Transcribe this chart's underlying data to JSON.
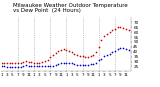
{
  "title_line1": "Milwaukee Weather Outdoor Temperature",
  "title_line2": "vs Dew Point  (24 Hours)",
  "temp_color": "#cc0000",
  "dew_color": "#0000cc",
  "background_color": "#ffffff",
  "grid_color": "#999999",
  "ylim": [
    20,
    75
  ],
  "xlim": [
    0,
    48
  ],
  "temp_x": [
    0,
    1,
    2,
    3,
    4,
    5,
    6,
    7,
    8,
    9,
    10,
    11,
    12,
    13,
    14,
    15,
    16,
    17,
    18,
    19,
    20,
    21,
    22,
    23,
    24,
    25,
    26,
    27,
    28,
    29,
    30,
    31,
    32,
    33,
    34,
    35,
    36,
    37,
    38,
    39,
    40,
    41,
    42,
    43,
    44,
    45,
    46,
    47
  ],
  "temp_y": [
    29,
    29,
    29,
    29,
    29,
    29,
    29,
    29,
    30,
    31,
    30,
    30,
    29,
    29,
    29,
    30,
    31,
    32,
    35,
    37,
    39,
    41,
    42,
    43,
    42,
    41,
    40,
    38,
    37,
    36,
    36,
    35,
    35,
    36,
    37,
    40,
    45,
    52,
    56,
    58,
    60,
    62,
    63,
    65,
    65,
    64,
    63,
    62
  ],
  "dew_x": [
    0,
    1,
    2,
    3,
    4,
    5,
    6,
    7,
    8,
    9,
    10,
    11,
    12,
    13,
    14,
    15,
    16,
    17,
    18,
    19,
    20,
    21,
    22,
    23,
    24,
    25,
    26,
    27,
    28,
    29,
    30,
    31,
    32,
    33,
    34,
    35,
    36,
    37,
    38,
    39,
    40,
    41,
    42,
    43,
    44,
    45,
    46,
    47
  ],
  "dew_y": [
    25,
    25,
    24,
    24,
    24,
    24,
    24,
    24,
    25,
    26,
    25,
    25,
    25,
    25,
    25,
    25,
    25,
    25,
    25,
    25,
    26,
    27,
    28,
    29,
    29,
    28,
    28,
    27,
    26,
    26,
    26,
    26,
    26,
    27,
    27,
    29,
    32,
    33,
    36,
    37,
    38,
    40,
    41,
    43,
    44,
    44,
    43,
    42
  ],
  "vgrid_positions": [
    6,
    12,
    18,
    24,
    30,
    36,
    42
  ],
  "ytick_positions": [
    25,
    30,
    35,
    40,
    45,
    50,
    55,
    60,
    65,
    70
  ],
  "xtick_positions": [
    0,
    2,
    4,
    6,
    8,
    10,
    12,
    14,
    16,
    18,
    20,
    22,
    24,
    26,
    28,
    30,
    32,
    34,
    36,
    38,
    40,
    42,
    44,
    46
  ],
  "xtick_labels": [
    "1",
    "3",
    "5",
    "7",
    "9",
    "11",
    "1",
    "3",
    "5",
    "7",
    "9",
    "11",
    "1",
    "3",
    "5",
    "7",
    "9",
    "11",
    "1",
    "3",
    "5",
    "7",
    "9",
    "11"
  ],
  "title_fontsize": 4.0,
  "tick_fontsize": 3.0,
  "marker_size": 1.5
}
